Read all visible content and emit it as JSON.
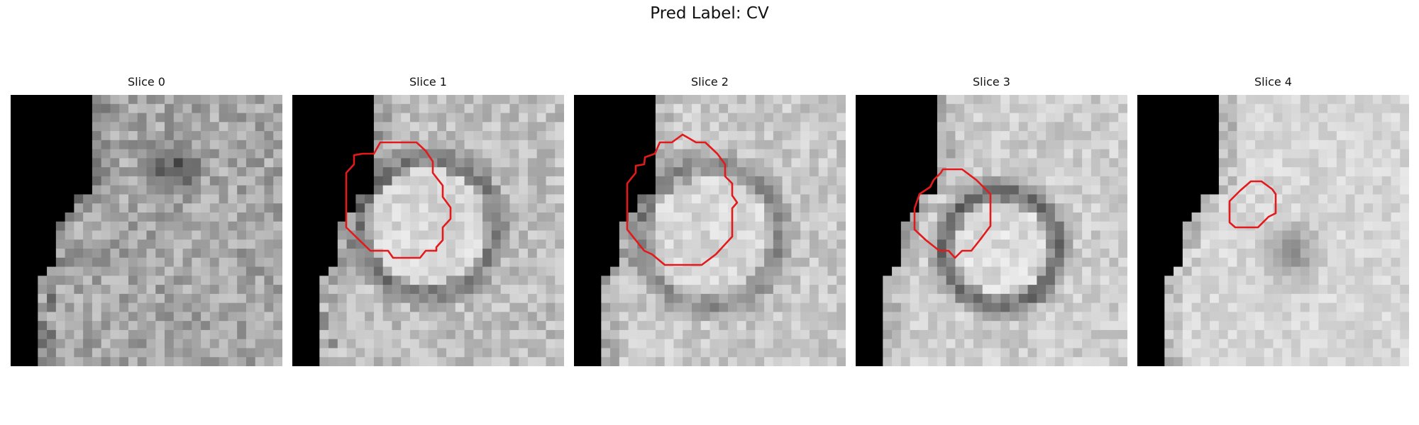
{
  "figure": {
    "title": "Pred Label: CV"
  },
  "panels": [
    {
      "title": "Slice 0"
    },
    {
      "title": "Slice 1"
    },
    {
      "title": "Slice 2"
    },
    {
      "title": "Slice 3"
    },
    {
      "title": "Slice 4"
    }
  ],
  "colors": {
    "contour": "#e31a1c",
    "background": "#ffffff",
    "mask": "#000000"
  }
}
